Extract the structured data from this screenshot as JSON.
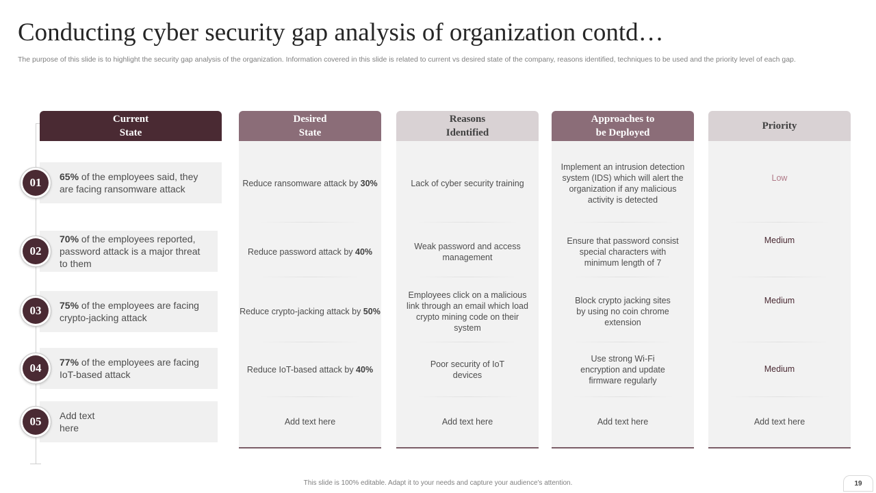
{
  "slide": {
    "title": "Conducting cyber security gap analysis of organization contd…",
    "subtitle": "The purpose of this slide is to highlight the security gap analysis of the organization. Information covered in this slide is related to current vs  desired state of the company, reasons identified, techniques to be used and the priority level of each gap.",
    "footer": "This slide is 100% editable.  Adapt it to your needs and capture your audience's attention.",
    "page_number": "19"
  },
  "headers": {
    "current": "Current\nState",
    "desired": "Desired\nState",
    "reasons": "Reasons\nIdentified",
    "approaches": "Approaches to\nbe Deployed",
    "priority": "Priority"
  },
  "rows": [
    {
      "num": "01",
      "current_bold": "65%",
      "current_rest": " of the employees said, they are facing ransomware attack",
      "desired_text": "Reduce ransomware attack by ",
      "desired_bold": "30%",
      "reason": "Lack of cyber security training",
      "approach": "Implement  an intrusion detection system (IDS) which will alert the organization  if any malicious  activity is detected",
      "priority": "Low"
    },
    {
      "num": "02",
      "current_bold": "70%",
      "current_rest": " of the employees reported, password attack is a major threat to them",
      "desired_text": "Reduce password attack  by ",
      "desired_bold": "40%",
      "reason": "Weak password and access management",
      "approach": "Ensure that password consist special characters with minimum length of 7",
      "priority": "Medium"
    },
    {
      "num": "03",
      "current_bold": "75%",
      "current_rest": " of the employees are facing crypto-jacking attack",
      "desired_text": "Reduce crypto-jacking attack by ",
      "desired_bold": "50%",
      "reason": "Employees click on a malicious link through an email which load crypto mining code on their system",
      "approach": "Block crypto jacking sites by using no coin chrome extension",
      "priority": "Medium"
    },
    {
      "num": "04",
      "current_bold": "77%",
      "current_rest": " of the employees are facing IoT-based attack",
      "desired_text": "Reduce IoT-based attack by ",
      "desired_bold": "40%",
      "reason": "Poor security of IoT devices",
      "approach": "Use strong Wi-Fi encryption and update firmware  regularly",
      "priority": "Medium"
    },
    {
      "num": "05",
      "current_bold": "",
      "current_rest": "Add text here",
      "desired_text": "Add text here",
      "desired_bold": "",
      "reason": "Add text here",
      "approach": "Add text here",
      "priority": "Add text here"
    }
  ],
  "colors": {
    "dark_maroon": "#4a2a33",
    "mauve": "#8b6d78",
    "light_mauve": "#d9d2d4",
    "panel_gray": "#f2f2f2"
  }
}
